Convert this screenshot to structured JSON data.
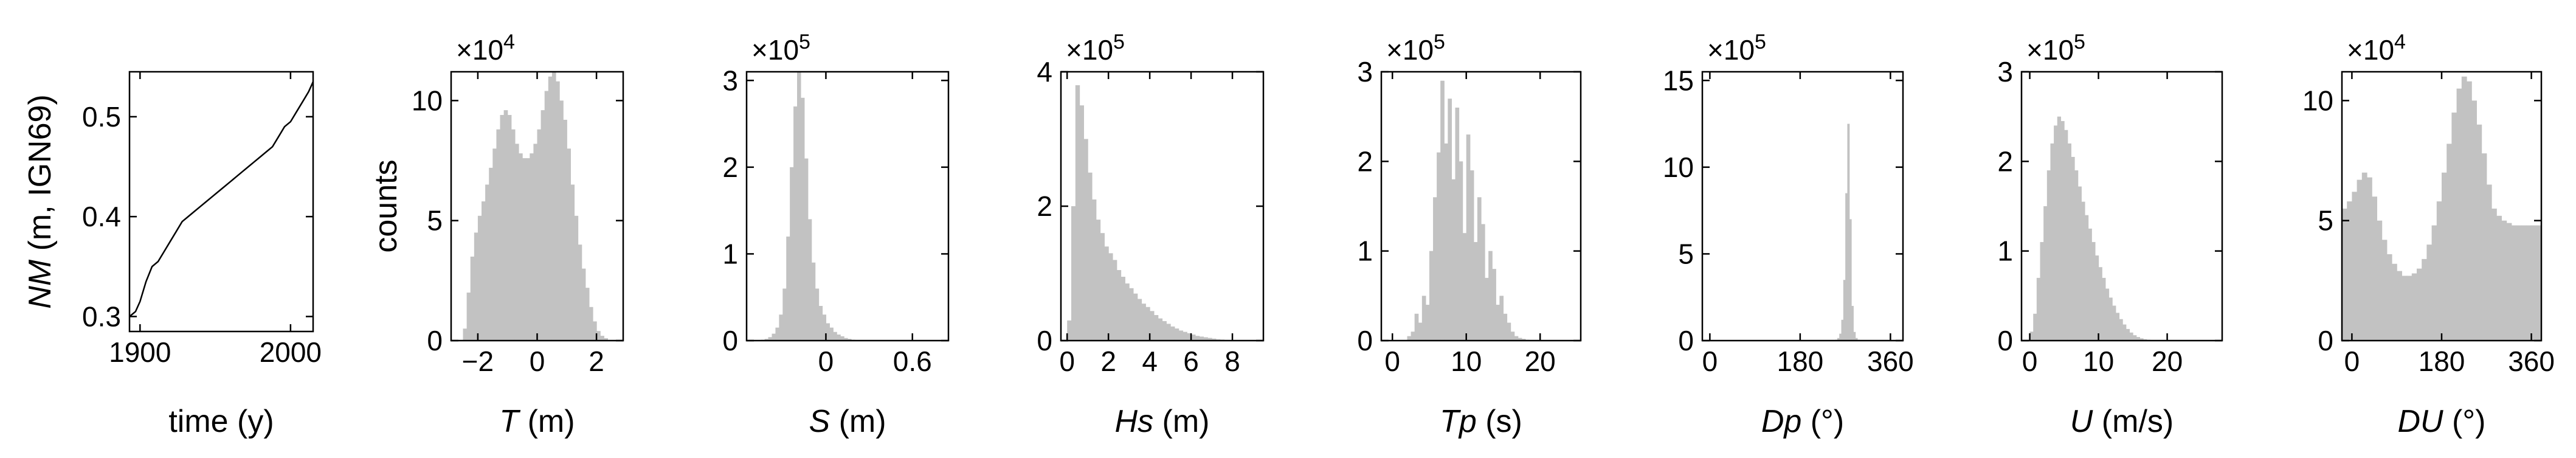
{
  "figure": {
    "colors": {
      "bars": "#c2c2c2",
      "line": "#000000",
      "axes": "#000000"
    }
  },
  "chart_data": [
    {
      "type": "line",
      "id": "nm",
      "xlabel": "time (y)",
      "ylabel_var": "NM",
      "ylabel_unit": " (m, IGN69)",
      "xlim": [
        1893,
        2015
      ],
      "ylim": [
        0.285,
        0.545
      ],
      "xticks": [
        1900,
        2000
      ],
      "yticks": [
        0.3,
        0.4,
        0.5
      ],
      "x": [
        1893,
        1897,
        1900,
        1904,
        1908,
        1912,
        1916,
        1920,
        1924,
        1928,
        1932,
        1936,
        1940,
        1944,
        1948,
        1952,
        1956,
        1960,
        1964,
        1968,
        1972,
        1976,
        1980,
        1984,
        1988,
        1992,
        1996,
        2000,
        2004,
        2008,
        2012,
        2015
      ],
      "y": [
        0.3,
        0.305,
        0.315,
        0.335,
        0.35,
        0.355,
        0.365,
        0.375,
        0.385,
        0.395,
        0.4,
        0.405,
        0.41,
        0.415,
        0.42,
        0.425,
        0.43,
        0.435,
        0.44,
        0.445,
        0.45,
        0.455,
        0.46,
        0.465,
        0.47,
        0.48,
        0.49,
        0.495,
        0.505,
        0.515,
        0.525,
        0.535
      ]
    },
    {
      "type": "histogram",
      "id": "T",
      "xlabel_var": "T",
      "xlabel_unit": " (m)",
      "ylabel": "counts",
      "multiplier": "×10",
      "exponent": "4",
      "xlim": [
        -2.9,
        2.9
      ],
      "ylim": [
        0,
        11.2
      ],
      "xticks": [
        -2,
        0,
        2
      ],
      "xtick_labels": [
        "−2",
        "0",
        "2"
      ],
      "yticks": [
        0,
        5,
        10
      ],
      "bins_start": -2.5,
      "bin_width": 0.125,
      "values": [
        0.5,
        2.0,
        3.5,
        4.5,
        5.2,
        5.8,
        6.5,
        7.2,
        8.0,
        8.8,
        9.4,
        9.6,
        9.4,
        8.8,
        8.2,
        7.8,
        7.6,
        7.6,
        7.8,
        8.2,
        8.8,
        9.6,
        10.4,
        11.0,
        11.2,
        10.8,
        10.0,
        9.2,
        8.0,
        6.5,
        5.2,
        4.0,
        3.0,
        2.2,
        1.4,
        0.8,
        0.4,
        0.2,
        0.1,
        0.0
      ]
    },
    {
      "type": "histogram",
      "id": "S",
      "xlabel_var": "S",
      "xlabel_unit": " (m)",
      "multiplier": "×10",
      "exponent": "5",
      "xlim": [
        -0.55,
        0.85
      ],
      "ylim": [
        0,
        3.1
      ],
      "xticks": [
        0,
        0.6
      ],
      "xtick_labels": [
        "0",
        "0.6"
      ],
      "yticks": [
        0,
        1,
        2,
        3
      ],
      "bins_start": -0.5,
      "bin_width": 0.025,
      "values": [
        0.0,
        0.005,
        0.01,
        0.02,
        0.04,
        0.08,
        0.15,
        0.3,
        0.6,
        1.2,
        2.0,
        2.7,
        3.1,
        2.8,
        2.1,
        1.4,
        0.9,
        0.6,
        0.4,
        0.3,
        0.2,
        0.15,
        0.1,
        0.07,
        0.05,
        0.03,
        0.02,
        0.01,
        0.005,
        0.0,
        0.0,
        0.0,
        0.0,
        0.0,
        0.0,
        0.0,
        0.0,
        0.0,
        0.0,
        0.0
      ]
    },
    {
      "type": "histogram",
      "id": "Hs",
      "xlabel_var": "Hs",
      "xlabel_unit": " (m)",
      "multiplier": "×10",
      "exponent": "5",
      "xlim": [
        -0.3,
        9.5
      ],
      "ylim": [
        0,
        4.0
      ],
      "xticks": [
        0,
        2,
        4,
        6,
        8
      ],
      "xtick_labels": [
        "0",
        "2",
        "4",
        "6",
        "8"
      ],
      "yticks": [
        0,
        2,
        4
      ],
      "bins_start": 0,
      "bin_width": 0.2,
      "values": [
        0.3,
        2.0,
        3.8,
        3.5,
        3.0,
        2.5,
        2.1,
        1.8,
        1.6,
        1.4,
        1.3,
        1.2,
        1.05,
        0.95,
        0.85,
        0.78,
        0.7,
        0.62,
        0.55,
        0.5,
        0.44,
        0.38,
        0.33,
        0.29,
        0.25,
        0.21,
        0.18,
        0.15,
        0.13,
        0.11,
        0.09,
        0.07,
        0.06,
        0.05,
        0.04,
        0.03,
        0.02,
        0.015,
        0.01,
        0.005
      ]
    },
    {
      "type": "histogram",
      "id": "Tp",
      "xlabel_var": "Tp",
      "xlabel_unit": " (s)",
      "multiplier": "×10",
      "exponent": "5",
      "xlim": [
        -1.5,
        25.5
      ],
      "ylim": [
        0,
        3.0
      ],
      "xticks": [
        0,
        10,
        20
      ],
      "xtick_labels": [
        "0",
        "10",
        "20"
      ],
      "yticks": [
        0,
        1,
        2,
        3
      ],
      "bins_start": 2,
      "bin_width": 0.5,
      "values": [
        0.05,
        0.1,
        0.3,
        0.2,
        0.5,
        0.4,
        1.0,
        1.6,
        2.1,
        2.9,
        2.2,
        2.7,
        1.8,
        2.6,
        2.0,
        1.2,
        2.3,
        1.9,
        1.1,
        1.6,
        1.3,
        0.7,
        1.0,
        0.8,
        0.4,
        0.5,
        0.3,
        0.2,
        0.1,
        0.05,
        0.03,
        0.02,
        0.01,
        0.0
      ]
    },
    {
      "type": "histogram",
      "id": "Dp",
      "xlabel_var": "Dp",
      "xlabel_unit": " (°)",
      "multiplier": "×10",
      "exponent": "5",
      "xlim": [
        -15,
        385
      ],
      "ylim": [
        0,
        15.5
      ],
      "xticks": [
        0,
        180,
        360
      ],
      "xtick_labels": [
        "0",
        "180",
        "360"
      ],
      "yticks": [
        0,
        5,
        10,
        15
      ],
      "bins_start": 250,
      "bin_width": 4,
      "values": [
        0.05,
        0.15,
        0.4,
        1.2,
        3.5,
        8.5,
        12.5,
        7.0,
        2.0,
        0.5,
        0.15,
        0.05
      ]
    },
    {
      "type": "histogram",
      "id": "U",
      "xlabel_var": "U",
      "xlabel_unit": " (m/s)",
      "multiplier": "×10",
      "exponent": "5",
      "xlim": [
        -1.2,
        28
      ],
      "ylim": [
        0,
        3.0
      ],
      "xticks": [
        0,
        10,
        20
      ],
      "xtick_labels": [
        "0",
        "10",
        "20"
      ],
      "yticks": [
        0,
        1,
        2,
        3
      ],
      "bins_start": 0,
      "bin_width": 0.5,
      "values": [
        0.1,
        0.3,
        0.7,
        1.1,
        1.5,
        1.9,
        2.2,
        2.4,
        2.5,
        2.45,
        2.35,
        2.2,
        2.05,
        1.9,
        1.72,
        1.55,
        1.4,
        1.25,
        1.1,
        0.95,
        0.82,
        0.7,
        0.58,
        0.48,
        0.39,
        0.31,
        0.24,
        0.18,
        0.13,
        0.09,
        0.06,
        0.04,
        0.025,
        0.015,
        0.01,
        0.005,
        0.0,
        0.0,
        0.0,
        0.0
      ]
    },
    {
      "type": "histogram",
      "id": "DU",
      "xlabel_var": "DU",
      "xlabel_unit": " (°)",
      "multiplier": "×10",
      "exponent": "4",
      "xlim": [
        -20,
        380
      ],
      "ylim": [
        0,
        11.2
      ],
      "xticks": [
        0,
        180,
        360
      ],
      "xtick_labels": [
        "0",
        "180",
        "360"
      ],
      "yticks": [
        0,
        5,
        10
      ],
      "bins_start": -20,
      "bin_width": 10,
      "values": [
        5.5,
        5.8,
        6.2,
        6.7,
        7.0,
        6.8,
        6.0,
        5.0,
        4.2,
        3.6,
        3.2,
        2.9,
        2.7,
        2.7,
        2.8,
        3.0,
        3.4,
        4.0,
        4.8,
        5.8,
        7.0,
        8.2,
        9.5,
        10.5,
        11.0,
        10.8,
        10.0,
        9.0,
        7.8,
        6.5,
        5.5,
        5.2,
        5.0,
        4.9,
        4.8,
        4.8,
        4.8,
        4.8,
        4.8,
        4.8
      ]
    }
  ]
}
